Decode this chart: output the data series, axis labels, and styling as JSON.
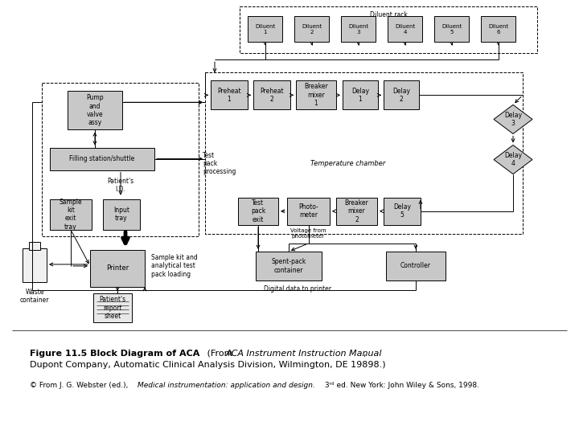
{
  "bg_color": "#ffffff",
  "box_color": "#c8c8c8",
  "box_edge": "#000000",
  "arrow_color": "#000000",
  "fig_width": 7.2,
  "fig_height": 5.4,
  "title_bold": "Figure 11.5 Block Diagram of ACA",
  "title_italic": "ACA Instrument Instruction Manual",
  "title_rest": ", Dupont Company, Automatic Clinical Analysis Division, Wilmington, DE 19898.)",
  "caption_start": "© From J. G. Webster (ed.), ",
  "caption_italic": "Medical instrumentation: application and design.",
  "caption_end": " 3rd ed. New York: John Wiley & Sons, 1998."
}
